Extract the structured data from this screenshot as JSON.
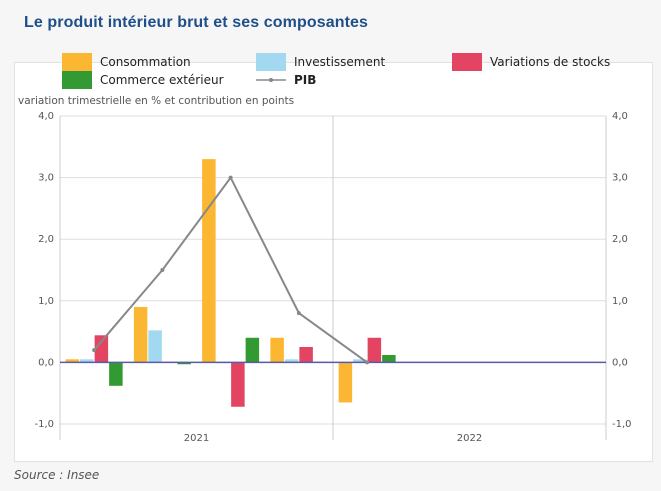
{
  "title": "Le produit intérieur brut et ses composantes",
  "source": "Source : Insee",
  "chart_data": {
    "type": "bar",
    "subtitle": "variation trimestrielle en % et contribution en points",
    "year_labels": [
      "2021",
      "2022"
    ],
    "periods_per_year": 4,
    "ylim": [
      -1.0,
      4.0
    ],
    "yticks": [
      "-1,0",
      "0,0",
      "1,0",
      "2,0",
      "3,0",
      "4,0"
    ],
    "ytick_values": [
      -1,
      0,
      1,
      2,
      3,
      4
    ],
    "grid": true,
    "legend_position": "top",
    "series": [
      {
        "name": "Consommation",
        "type": "bar",
        "color": "#fbb731",
        "values": [
          0.05,
          0.9,
          3.3,
          0.4,
          -0.65,
          null,
          null,
          null
        ]
      },
      {
        "name": "Investissement",
        "type": "bar",
        "color": "#a2d9f0",
        "values": [
          0.05,
          0.52,
          0.0,
          0.05,
          0.05,
          null,
          null,
          null
        ]
      },
      {
        "name": "Variations de stocks",
        "type": "bar",
        "color": "#e34462",
        "values": [
          0.44,
          0.01,
          -0.72,
          0.25,
          0.4,
          null,
          null,
          null
        ]
      },
      {
        "name": "Commerce extérieur",
        "type": "bar",
        "color": "#339933",
        "values": [
          -0.38,
          -0.03,
          0.4,
          0.01,
          0.12,
          null,
          null,
          null
        ]
      },
      {
        "name": "PIB",
        "type": "line",
        "color": "#888888",
        "values": [
          0.2,
          1.5,
          3.0,
          0.8,
          0.0,
          null,
          null,
          null
        ]
      }
    ]
  }
}
